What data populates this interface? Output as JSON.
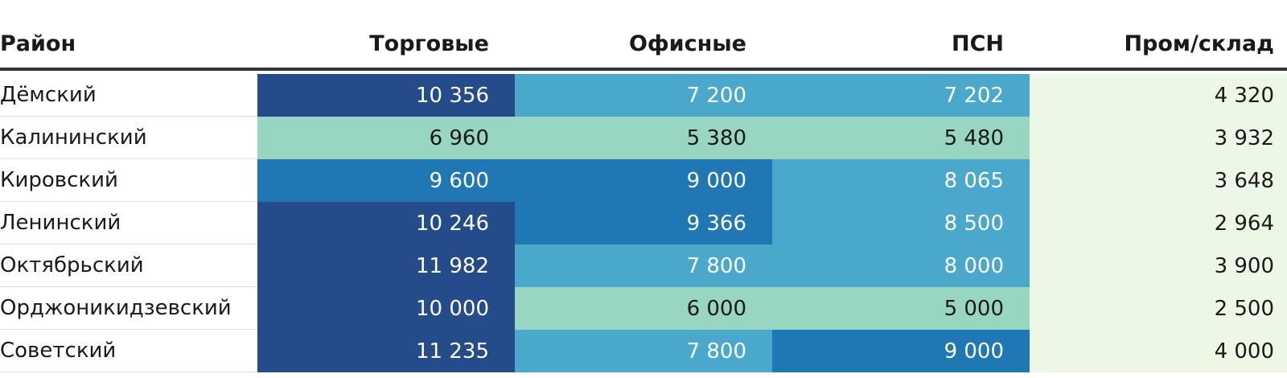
{
  "chart_data": {
    "type": "table",
    "columns": [
      "Район",
      "Торговые",
      "Офисные",
      "ПСН",
      "Пром/склад"
    ],
    "rows": [
      {
        "district": "Дёмский",
        "values": [
          10356,
          7200,
          7202,
          4320
        ],
        "labels": [
          "10 356",
          "7 200",
          "7 202",
          "4 320"
        ]
      },
      {
        "district": "Калининский",
        "values": [
          6960,
          5380,
          5480,
          3932
        ],
        "labels": [
          "6 960",
          "5 380",
          "5 480",
          "3 932"
        ]
      },
      {
        "district": "Кировский",
        "values": [
          9600,
          9000,
          8065,
          3648
        ],
        "labels": [
          "9 600",
          "9 000",
          "8 065",
          "3 648"
        ]
      },
      {
        "district": "Ленинский",
        "values": [
          10246,
          9366,
          8500,
          2964
        ],
        "labels": [
          "10 246",
          "9 366",
          "8 500",
          "2 964"
        ]
      },
      {
        "district": "Октябрьский",
        "values": [
          11982,
          7800,
          8000,
          3900
        ],
        "labels": [
          "11 982",
          "7 800",
          "8 000",
          "3 900"
        ]
      },
      {
        "district": "Орджоникидзевский",
        "values": [
          10000,
          6000,
          5000,
          2500
        ],
        "labels": [
          "10 000",
          "6 000",
          "5 000",
          "2 500"
        ]
      },
      {
        "district": "Советский",
        "values": [
          11235,
          7800,
          9000,
          4000
        ],
        "labels": [
          "11 235",
          "7 800",
          "9 000",
          "4 000"
        ]
      }
    ],
    "color_scale": {
      "type": "heatmap",
      "thresholds": [
        5000,
        7000,
        9000,
        10000
      ],
      "colors": [
        "#edf7e6",
        "#98d6c1",
        "#4aa8cc",
        "#1f77b4",
        "#244b8a"
      ],
      "text_colors": [
        "#1a1a1a",
        "#1a1a1a",
        "#ffffff",
        "#ffffff",
        "#ffffff"
      ]
    }
  }
}
